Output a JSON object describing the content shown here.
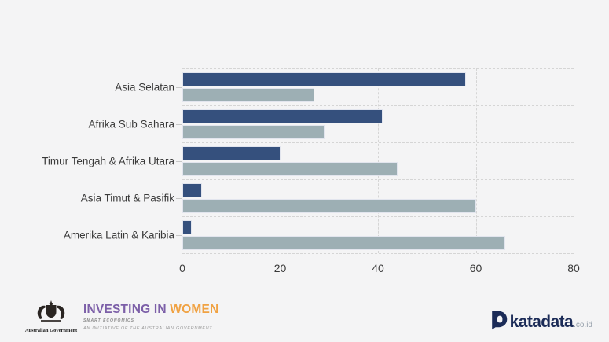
{
  "chart_data": {
    "type": "bar",
    "orientation": "horizontal",
    "categories": [
      "Asia Selatan",
      "Afrika Sub Sahara",
      "Timur Tengah & Afrika Utara",
      "Asia Timut & Pasifik",
      "Amerika Latin & Karibia"
    ],
    "series": [
      {
        "name": "dark-blue",
        "color": "#35507D",
        "values": [
          58,
          41,
          20,
          4,
          2
        ]
      },
      {
        "name": "light-gray-blue",
        "color": "#9DAFB4",
        "values": [
          27,
          29,
          44,
          60,
          66
        ]
      }
    ],
    "xlim": [
      0,
      80
    ],
    "x_ticks": [
      0,
      20,
      40,
      60,
      80
    ],
    "grid": "dashed",
    "legend": "none"
  },
  "footer": {
    "investing_in_women": {
      "crest_caption": "Australian Government",
      "line1_part1": "INVESTING IN ",
      "line1_part2": "WOMEN",
      "line2": "SMART ECONOMICS",
      "line3": "AN INITIATIVE OF THE AUSTRALIAN GOVERNMENT",
      "purple": "#7C5FA8",
      "orange": "#F0A243"
    },
    "katadata": {
      "wordmark": "katadata",
      "suffix": ".co.id",
      "navy": "#1B2B57"
    }
  },
  "colors": {
    "background": "#F4F4F5",
    "gridline": "#D5D5D5",
    "axis_text": "#3A3A3A"
  }
}
